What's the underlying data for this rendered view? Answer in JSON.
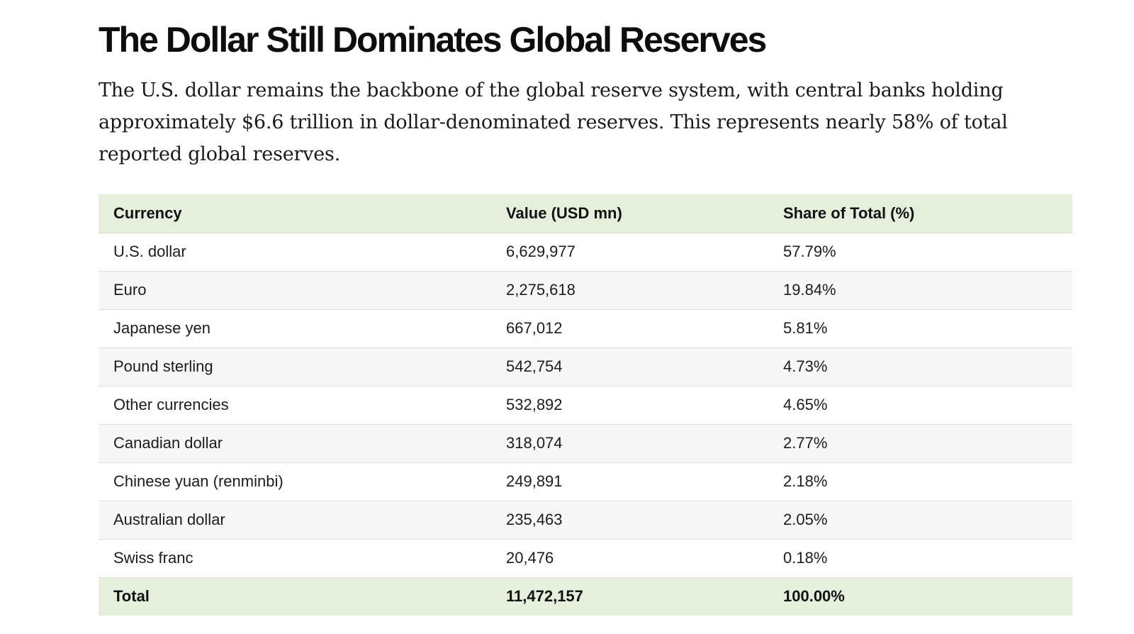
{
  "article": {
    "title": "The Dollar Still Dominates Global Reserves",
    "intro": "The U.S. dollar remains the backbone of the global reserve system, with central banks holding approximately $6.6 trillion in dollar-denominated reserves. This represents nearly 58% of total reported global reserves."
  },
  "table": {
    "headers": {
      "currency": "Currency",
      "value": "Value (USD mn)",
      "share": "Share of Total (%)"
    },
    "rows": [
      {
        "currency": "U.S. dollar",
        "value": "6,629,977",
        "share": "57.79%"
      },
      {
        "currency": "Euro",
        "value": "2,275,618",
        "share": "19.84%"
      },
      {
        "currency": "Japanese yen",
        "value": "667,012",
        "share": "5.81%"
      },
      {
        "currency": "Pound sterling",
        "value": "542,754",
        "share": "4.73%"
      },
      {
        "currency": "Other currencies",
        "value": "532,892",
        "share": "4.65%"
      },
      {
        "currency": "Canadian dollar",
        "value": "318,074",
        "share": "2.77%"
      },
      {
        "currency": "Chinese yuan (renminbi)",
        "value": "249,891",
        "share": "2.18%"
      },
      {
        "currency": "Australian dollar",
        "value": "235,463",
        "share": "2.05%"
      },
      {
        "currency": "Swiss franc",
        "value": "20,476",
        "share": "0.18%"
      }
    ],
    "total": {
      "currency": "Total",
      "value": "11,472,157",
      "share": "100.00%"
    }
  },
  "colors": {
    "header_bg": "#e6efdc",
    "row_alt_bg": "#f7f7f7",
    "row_border": "#dedede",
    "text": "#111111"
  }
}
